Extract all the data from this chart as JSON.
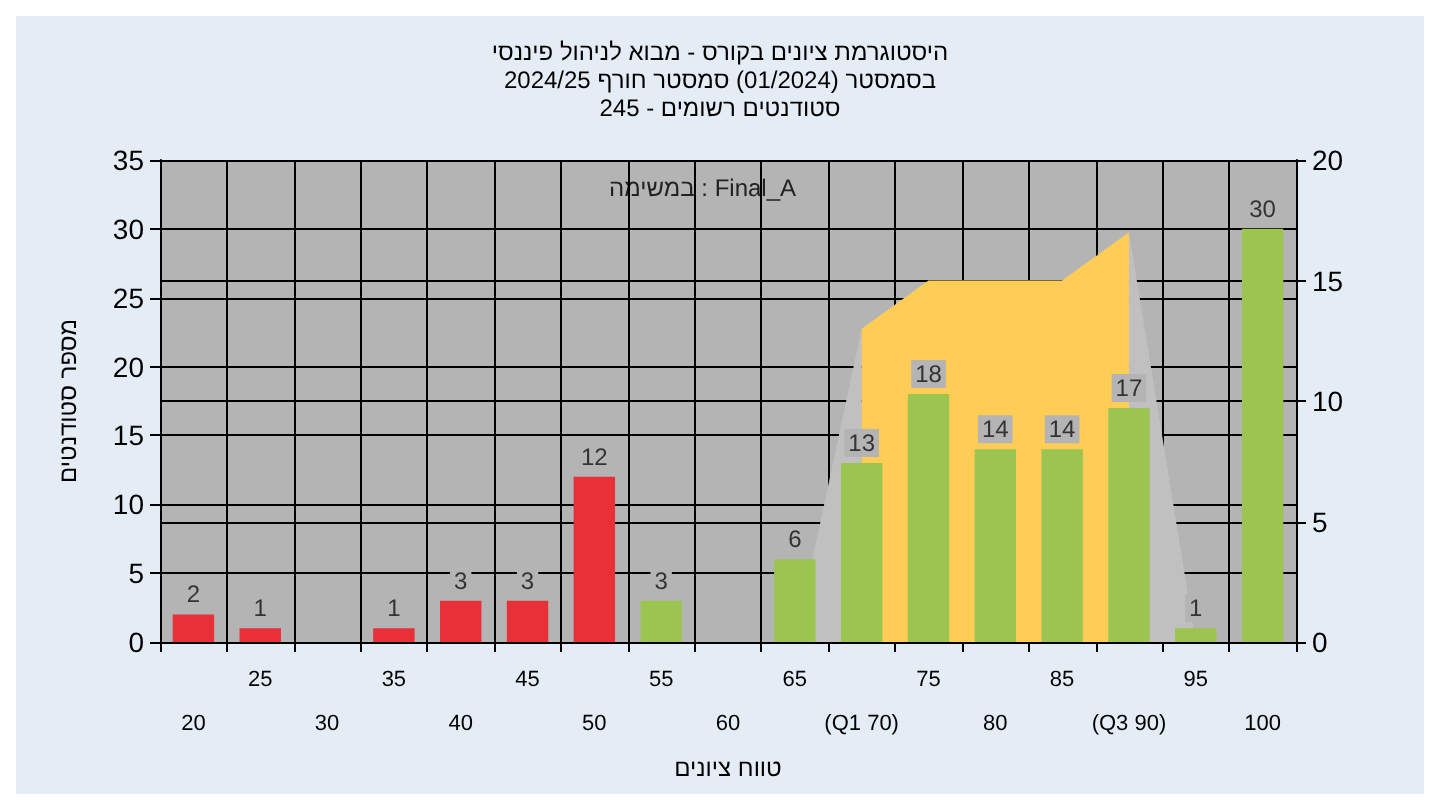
{
  "chart_data": {
    "type": "bar",
    "title": "היסטוגרמת ציונים בקורס - מבוא לניהול פיננסי",
    "subtitle": "בסמסטר (01/2024) סמסטר חורף 2024/25\nסטודנטים רשומים - 245",
    "xlabel": "טווח ציונים",
    "ylabel": "מספר סטודנטים",
    "annotations": [
      "במשימה : Final_A"
    ],
    "categories": [
      "20",
      "25",
      "30",
      "35",
      "40",
      "45",
      "50",
      "55",
      "60",
      "65",
      "(Q1 70)",
      "75",
      "80",
      "85",
      "(Q3 90)",
      "95",
      "100"
    ],
    "series": [
      {
        "type": "area",
        "axis": "y2",
        "color": "#c0c0c0",
        "values": [
          null,
          null,
          null,
          null,
          null,
          null,
          null,
          null,
          null,
          0,
          13,
          null,
          null,
          null,
          17,
          0,
          null
        ]
      },
      {
        "type": "area",
        "axis": "y2",
        "color": "#ffcc55",
        "values": [
          null,
          null,
          null,
          null,
          null,
          null,
          null,
          null,
          null,
          null,
          13,
          15,
          15,
          15,
          17,
          null,
          null
        ]
      },
      {
        "values": [
          2,
          1,
          0,
          1,
          3,
          3,
          12,
          3,
          0,
          6,
          13,
          18,
          14,
          14,
          17,
          1,
          30
        ],
        "colors": [
          "#e83038",
          "#e83038",
          "#e83038",
          "#e83038",
          "#e83038",
          "#e83038",
          "#e83038",
          "#9cc450",
          "#9cc450",
          "#9cc450",
          "#9cc450",
          "#9cc450",
          "#9cc450",
          "#9cc450",
          "#9cc450",
          "#9cc450",
          "#9cc450"
        ],
        "value_labels": [
          "2",
          "1",
          null,
          "1",
          "3",
          "3",
          "12",
          "3",
          null,
          "6",
          "13",
          "18",
          "14",
          "14",
          "17",
          "1",
          "30"
        ]
      }
    ],
    "ylim": [
      0,
      35
    ],
    "yticks": [
      0,
      5,
      10,
      15,
      20,
      25,
      30,
      35
    ],
    "y2lim": [
      0,
      20
    ],
    "y2ticks": [
      0,
      5,
      10,
      15,
      20
    ],
    "grid": true
  }
}
